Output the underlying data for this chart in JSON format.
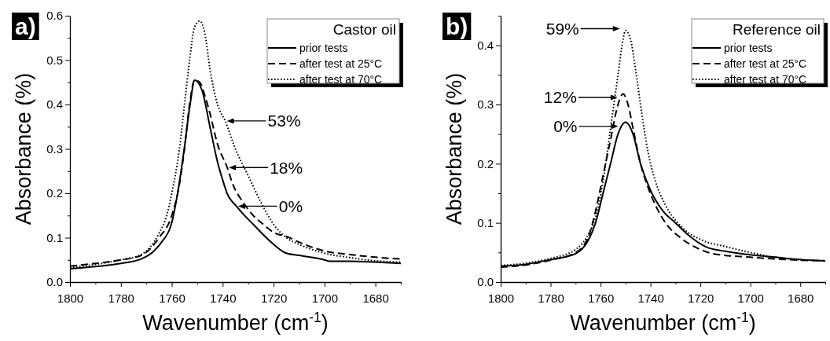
{
  "chart_data": [
    {
      "type": "line",
      "title": "a)",
      "xlabel": "Wavenumber (cm$^{-1}$)",
      "ylabel": "Absorbance (%)",
      "legend_title": "Castor oil",
      "legend": "top right",
      "xlim": [
        1800,
        1670
      ],
      "ylim": [
        0,
        0.6
      ],
      "xticks": [
        1800,
        {
          "value": 1790,
          "label": null
        },
        1780,
        {
          "value": 1770,
          "label": null
        },
        1760,
        {
          "value": 1750,
          "label": null
        },
        1740,
        {
          "value": 1730,
          "label": null
        },
        1720,
        {
          "value": 1710,
          "label": null
        },
        1700,
        {
          "value": 1690,
          "label": null
        },
        1680,
        {
          "value": 1670,
          "label": null
        }
      ],
      "yticks": [
        {
          "value": 0,
          "label": "0.0"
        },
        {
          "value": 0.05,
          "label": null
        },
        0.1,
        {
          "value": 0.15,
          "label": null
        },
        0.2,
        {
          "value": 0.25,
          "label": null
        },
        0.3,
        {
          "value": 0.35,
          "label": null
        },
        0.4,
        {
          "value": 0.45,
          "label": null
        },
        0.5,
        {
          "value": 0.55,
          "label": null
        },
        0.6
      ],
      "series": [
        {
          "name": "prior tests",
          "color": "#000000",
          "line_style": "solid",
          "x": [
            1800,
            1790,
            1780,
            1772,
            1767,
            1764,
            1760,
            1757.7,
            1755.1,
            1752.8,
            1751,
            1748,
            1745,
            1742,
            1740,
            1738.2,
            1734.6,
            1733,
            1728,
            1720,
            1715,
            1710,
            1700,
            1698,
            1690,
            1680,
            1670
          ],
          "values": [
            0.03,
            0.035,
            0.042,
            0.052,
            0.07,
            0.09,
            0.134,
            0.2,
            0.3,
            0.4,
            0.455,
            0.43,
            0.35,
            0.27,
            0.23,
            0.199,
            0.171,
            0.16,
            0.13,
            0.085,
            0.065,
            0.06,
            0.05,
            0.047,
            0.047,
            0.045,
            0.042
          ]
        },
        {
          "name": "after test at 25°C",
          "color": "#000000",
          "line_style": "dashed",
          "x": [
            1800,
            1790,
            1780,
            1772,
            1765,
            1760,
            1757,
            1755,
            1753,
            1751,
            1749,
            1747,
            1745,
            1742,
            1738.2,
            1736,
            1732,
            1728,
            1724,
            1720,
            1714.2,
            1710,
            1700,
            1690,
            1680,
            1670
          ],
          "values": [
            0.036,
            0.042,
            0.05,
            0.06,
            0.1,
            0.15,
            0.22,
            0.3,
            0.4,
            0.455,
            0.45,
            0.42,
            0.38,
            0.31,
            0.258,
            0.22,
            0.18,
            0.15,
            0.13,
            0.112,
            0.101,
            0.09,
            0.07,
            0.062,
            0.056,
            0.052
          ]
        },
        {
          "name": "after test at 70°C",
          "color": "#000000",
          "line_style": "dotted",
          "x": [
            1800,
            1790,
            1780,
            1772,
            1765,
            1762,
            1760,
            1757,
            1755,
            1753,
            1751,
            1749,
            1747,
            1745,
            1742,
            1739,
            1735,
            1730,
            1725,
            1720,
            1715,
            1710,
            1700,
            1690,
            1680,
            1670
          ],
          "values": [
            0.033,
            0.04,
            0.05,
            0.062,
            0.11,
            0.15,
            0.2,
            0.3,
            0.4,
            0.5,
            0.575,
            0.588,
            0.56,
            0.48,
            0.4,
            0.363,
            0.3,
            0.24,
            0.18,
            0.13,
            0.1,
            0.085,
            0.065,
            0.055,
            0.048,
            0.045
          ]
        }
      ],
      "annotations": [
        {
          "text": "53%",
          "x": 1739,
          "y": 0.363
        },
        {
          "text": "18%",
          "x": 1738.2,
          "y": 0.258
        },
        {
          "text": "0%",
          "x": 1734.6,
          "y": 0.171
        }
      ]
    },
    {
      "type": "line",
      "title": "b)",
      "xlabel": "Wavenumber (cm$^{-1}$)",
      "ylabel": "Absorbance (%)",
      "legend_title": "Reference oil",
      "legend": "top right",
      "xlim": [
        1800,
        1670
      ],
      "ylim": [
        0,
        0.45
      ],
      "xticks": [
        1800,
        {
          "value": 1790,
          "label": null
        },
        1780,
        {
          "value": 1770,
          "label": null
        },
        1760,
        {
          "value": 1750,
          "label": null
        },
        1740,
        {
          "value": 1730,
          "label": null
        },
        1720,
        {
          "value": 1710,
          "label": null
        },
        1700,
        {
          "value": 1690,
          "label": null
        },
        1680,
        {
          "value": 1670,
          "label": null
        }
      ],
      "yticks": [
        {
          "value": 0,
          "label": "0.0"
        },
        {
          "value": 0.05,
          "label": null
        },
        0.1,
        {
          "value": 0.15,
          "label": null
        },
        0.2,
        {
          "value": 0.25,
          "label": null
        },
        0.3,
        {
          "value": 0.35,
          "label": null
        },
        0.4,
        {
          "value": 0.45,
          "label": null
        }
      ],
      "series": [
        {
          "name": "prior tests",
          "color": "#000000",
          "line_style": "solid",
          "x": [
            1800,
            1790,
            1780,
            1770,
            1765,
            1762,
            1759,
            1756,
            1753,
            1750,
            1747,
            1744,
            1740,
            1735,
            1730,
            1725,
            1718,
            1710,
            1700,
            1690,
            1680,
            1670
          ],
          "values": [
            0.027,
            0.03,
            0.038,
            0.048,
            0.07,
            0.1,
            0.15,
            0.2,
            0.25,
            0.27,
            0.25,
            0.2,
            0.155,
            0.12,
            0.1,
            0.08,
            0.06,
            0.052,
            0.046,
            0.042,
            0.038,
            0.036
          ]
        },
        {
          "name": "after test at 25°C",
          "color": "#000000",
          "line_style": "dashed",
          "x": [
            1800,
            1790,
            1780,
            1770,
            1765,
            1762,
            1759,
            1756,
            1753,
            1751,
            1749,
            1747,
            1744,
            1741,
            1738,
            1734,
            1728,
            1720,
            1715,
            1700,
            1690,
            1680,
            1670
          ],
          "values": [
            0.025,
            0.029,
            0.037,
            0.05,
            0.075,
            0.12,
            0.18,
            0.24,
            0.3,
            0.318,
            0.3,
            0.26,
            0.2,
            0.16,
            0.13,
            0.1,
            0.075,
            0.055,
            0.048,
            0.042,
            0.039,
            0.037,
            0.036
          ]
        },
        {
          "name": "after test at 70°C",
          "color": "#000000",
          "line_style": "dotted",
          "x": [
            1800,
            1790,
            1780,
            1770,
            1765,
            1762,
            1759,
            1756,
            1753,
            1751,
            1750,
            1748,
            1746,
            1744,
            1741,
            1738,
            1734,
            1728,
            1720,
            1710,
            1700,
            1690,
            1680,
            1670
          ],
          "values": [
            0.028,
            0.032,
            0.04,
            0.055,
            0.08,
            0.11,
            0.17,
            0.26,
            0.35,
            0.41,
            0.425,
            0.41,
            0.36,
            0.3,
            0.22,
            0.17,
            0.13,
            0.095,
            0.072,
            0.06,
            0.05,
            0.042,
            0.038,
            0.036
          ]
        }
      ],
      "annotations": [
        {
          "text": "59%",
          "x": 1751.6,
          "y": 0.428
        },
        {
          "text": "12%",
          "x": 1752.5,
          "y": 0.312
        },
        {
          "text": "0%",
          "x": 1752.3,
          "y": 0.263
        }
      ]
    }
  ]
}
